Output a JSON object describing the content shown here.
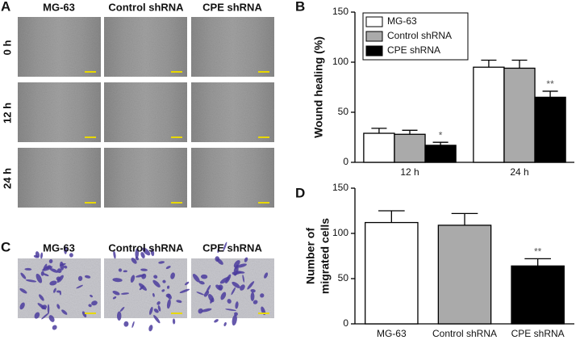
{
  "panel_labels": [
    "A",
    "B",
    "C",
    "D"
  ],
  "images_a": {
    "columns": [
      "MG-63",
      "Control shRNA",
      "CPE shRNA"
    ],
    "rows": [
      "0 h",
      "12 h",
      "24 h"
    ]
  },
  "images_c": {
    "columns": [
      "MG-63",
      "Control shRNA",
      "CPE shRNA"
    ]
  },
  "chart_data": [
    {
      "type": "bar",
      "ylabel": "Wound healing (%)",
      "categories": [
        "12 h",
        "24 h"
      ],
      "series": [
        {
          "name": "MG-63",
          "color": "#ffffff",
          "values": [
            29,
            95
          ],
          "errors": [
            5,
            7
          ]
        },
        {
          "name": "Control shRNA",
          "color": "#aaaaaa",
          "values": [
            28,
            94
          ],
          "errors": [
            4,
            8
          ]
        },
        {
          "name": "CPE shRNA",
          "color": "#000000",
          "values": [
            17,
            65
          ],
          "errors": [
            3,
            6
          ],
          "annotations": [
            "*",
            "**"
          ]
        }
      ],
      "ylim": [
        0,
        150
      ],
      "yticks": [
        0,
        50,
        100,
        150
      ],
      "legend": "upper-left"
    },
    {
      "type": "bar",
      "ylabel": [
        "Number of",
        "migrated cells"
      ],
      "categories": [
        "MG-63",
        "Control shRNA",
        "CPE shRNA"
      ],
      "values": [
        112,
        109,
        64
      ],
      "errors": [
        13,
        13,
        8
      ],
      "colors": [
        "#ffffff",
        "#aaaaaa",
        "#000000"
      ],
      "annotations": [
        null,
        null,
        "**"
      ],
      "ylim": [
        0,
        150
      ],
      "yticks": [
        0,
        50,
        100,
        150
      ]
    }
  ]
}
